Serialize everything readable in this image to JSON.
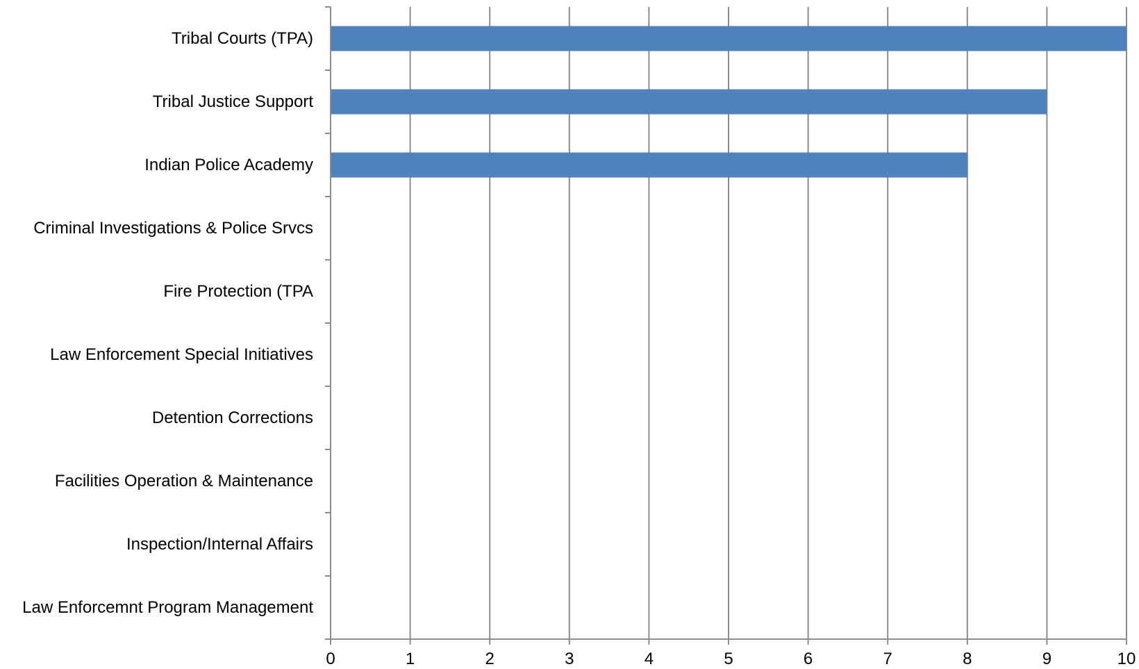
{
  "chart_data": {
    "type": "bar",
    "orientation": "horizontal",
    "categories": [
      "Tribal Courts (TPA)",
      "Tribal Justice Support",
      "Indian Police Academy",
      "Criminal Investigations & Police Srvcs",
      "Fire Protection (TPA",
      "Law Enforcement Special Initiatives",
      "Detention Corrections",
      "Facilities Operation & Maintenance",
      "Inspection/Internal Affairs",
      "Law Enforcemnt Program Management"
    ],
    "values": [
      10,
      9,
      8,
      0,
      0,
      0,
      0,
      0,
      0,
      0
    ],
    "title": "",
    "xlabel": "",
    "ylabel": "",
    "xlim": [
      0,
      10
    ],
    "xticks": [
      "0",
      "1",
      "2",
      "3",
      "4",
      "5",
      "6",
      "7",
      "8",
      "9",
      "10"
    ],
    "grid": "vertical",
    "legend": "none",
    "bar_color": "#4f81bd",
    "grid_color": "#8c8c8c"
  }
}
